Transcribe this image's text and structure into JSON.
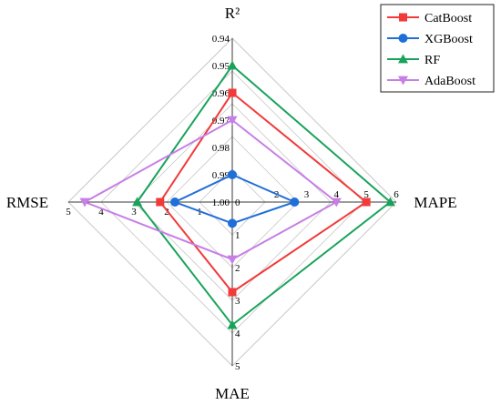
{
  "chart_data": {
    "type": "radar",
    "axes": [
      {
        "key": "r2",
        "label": "R²",
        "direction": "up",
        "ticks": [
          "0.94",
          "0.95",
          "0.96",
          "0.97",
          "0.98",
          "0.99",
          "1.00"
        ],
        "range": [
          1.0,
          0.94
        ]
      },
      {
        "key": "mape",
        "label": "MAPE",
        "direction": "right",
        "ticks": [
          "2",
          "3",
          "4",
          "5",
          "6"
        ],
        "range": [
          2,
          6
        ]
      },
      {
        "key": "mae",
        "label": "MAE",
        "direction": "down",
        "ticks": [
          "0",
          "1",
          "2",
          "3",
          "4",
          "5"
        ],
        "range": [
          0,
          5
        ]
      },
      {
        "key": "rmse",
        "label": "RMSE",
        "direction": "left",
        "ticks": [
          "1",
          "2",
          "3",
          "4",
          "5"
        ],
        "range": [
          1,
          5
        ]
      }
    ],
    "series": [
      {
        "name": "CatBoost",
        "color": "#f23a3a",
        "marker": "square",
        "values": {
          "r2": 0.96,
          "mape": 5.0,
          "mae": 2.75,
          "rmse": 2.2
        }
      },
      {
        "name": "XGBoost",
        "color": "#1e6fd8",
        "marker": "circle",
        "values": {
          "r2": 0.99,
          "mape": 2.6,
          "mae": 0.65,
          "rmse": 1.75
        }
      },
      {
        "name": "RF",
        "color": "#19a35a",
        "marker": "triangle-up",
        "values": {
          "r2": 0.95,
          "mape": 5.8,
          "mae": 3.75,
          "rmse": 2.9
        }
      },
      {
        "name": "AdaBoost",
        "color": "#c77ee6",
        "marker": "triangle-down",
        "values": {
          "r2": 0.97,
          "mape": 4.0,
          "mae": 1.75,
          "rmse": 4.5
        }
      }
    ],
    "legend_position": "top-right",
    "grid": true
  }
}
